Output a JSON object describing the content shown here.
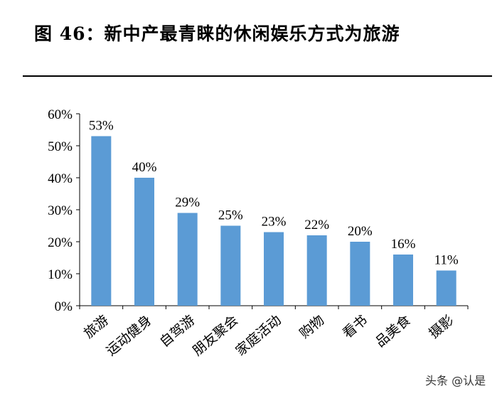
{
  "figure": {
    "title": "图 46：新中产最青睐的休闲娱乐方式为旅游",
    "watermark": "头条 @认是"
  },
  "chart_data": {
    "type": "bar",
    "title": "图 46：新中产最青睐的休闲娱乐方式为旅游",
    "xlabel": "",
    "ylabel": "",
    "categories": [
      "旅游",
      "运动健身",
      "自驾游",
      "朋友聚会",
      "家庭活动",
      "购物",
      "看书",
      "品美食",
      "摄影"
    ],
    "values": [
      53,
      40,
      29,
      25,
      23,
      22,
      20,
      16,
      11
    ],
    "data_labels": [
      "53%",
      "40%",
      "29%",
      "25%",
      "23%",
      "22%",
      "20%",
      "16%",
      "11%"
    ],
    "yticks": [
      "0%",
      "10%",
      "20%",
      "30%",
      "40%",
      "50%",
      "60%"
    ],
    "ylim": [
      0,
      60
    ],
    "grid": false,
    "legend": "none",
    "bar_color": "#5B9BD5"
  }
}
